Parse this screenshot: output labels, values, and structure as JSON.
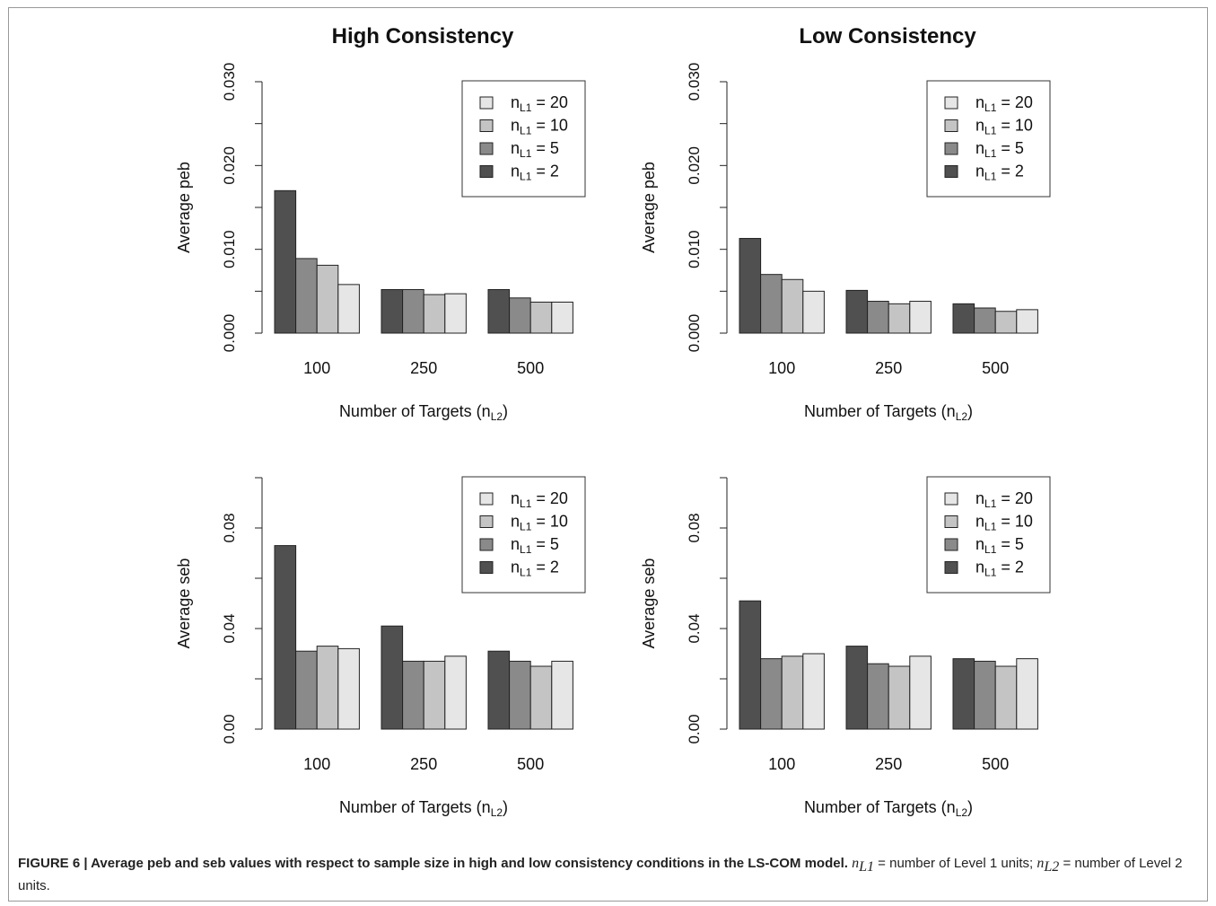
{
  "colors": {
    "nL1_2": "#505050",
    "nL1_5": "#8a8a8a",
    "nL1_10": "#c4c4c4",
    "nL1_20": "#e6e6e6",
    "axis": "#222222"
  },
  "chart_data": [
    {
      "type": "bar",
      "title": "High Consistency",
      "ylabel": "Average peb",
      "xlabel": "Number of Targets (n",
      "xlabel_sub": "L2",
      "xlabel_close": ")",
      "categories": [
        "100",
        "250",
        "500"
      ],
      "ylim": [
        0,
        0.03
      ],
      "yticks": [
        0,
        0.005,
        0.01,
        0.015,
        0.02,
        0.025,
        0.03
      ],
      "yticklabels": [
        "0.000",
        "",
        "0.010",
        "",
        "0.020",
        "",
        "0.030"
      ],
      "legend_position": "top-right",
      "series": [
        {
          "name": "2",
          "color_key": "nL1_2",
          "values": [
            0.017,
            0.0052,
            0.0052
          ]
        },
        {
          "name": "5",
          "color_key": "nL1_5",
          "values": [
            0.0089,
            0.0052,
            0.0042
          ]
        },
        {
          "name": "10",
          "color_key": "nL1_10",
          "values": [
            0.0081,
            0.0046,
            0.0037
          ]
        },
        {
          "name": "20",
          "color_key": "nL1_20",
          "values": [
            0.0058,
            0.0047,
            0.0037
          ]
        }
      ],
      "legend_prefix": "n",
      "legend_sub": "L1",
      "legend_eq": " = "
    },
    {
      "type": "bar",
      "title": "Low Consistency",
      "ylabel": "Average peb",
      "xlabel": "Number of Targets (n",
      "xlabel_sub": "L2",
      "xlabel_close": ")",
      "categories": [
        "100",
        "250",
        "500"
      ],
      "ylim": [
        0,
        0.03
      ],
      "yticks": [
        0,
        0.005,
        0.01,
        0.015,
        0.02,
        0.025,
        0.03
      ],
      "yticklabels": [
        "0.000",
        "",
        "0.010",
        "",
        "0.020",
        "",
        "0.030"
      ],
      "legend_position": "top-right",
      "series": [
        {
          "name": "2",
          "color_key": "nL1_2",
          "values": [
            0.0113,
            0.0051,
            0.0035
          ]
        },
        {
          "name": "5",
          "color_key": "nL1_5",
          "values": [
            0.007,
            0.0038,
            0.003
          ]
        },
        {
          "name": "10",
          "color_key": "nL1_10",
          "values": [
            0.0064,
            0.0035,
            0.0026
          ]
        },
        {
          "name": "20",
          "color_key": "nL1_20",
          "values": [
            0.005,
            0.0038,
            0.0028
          ]
        }
      ],
      "legend_prefix": "n",
      "legend_sub": "L1",
      "legend_eq": " = "
    },
    {
      "type": "bar",
      "title": "",
      "ylabel": "Average seb",
      "xlabel": "Number of Targets (n",
      "xlabel_sub": "L2",
      "xlabel_close": ")",
      "categories": [
        "100",
        "250",
        "500"
      ],
      "ylim": [
        0,
        0.1
      ],
      "yticks": [
        0,
        0.02,
        0.04,
        0.06,
        0.08,
        0.1
      ],
      "yticklabels": [
        "0.00",
        "",
        "0.04",
        "",
        "0.08",
        ""
      ],
      "legend_position": "top-right",
      "series": [
        {
          "name": "2",
          "color_key": "nL1_2",
          "values": [
            0.073,
            0.041,
            0.031
          ]
        },
        {
          "name": "5",
          "color_key": "nL1_5",
          "values": [
            0.031,
            0.027,
            0.027
          ]
        },
        {
          "name": "10",
          "color_key": "nL1_10",
          "values": [
            0.033,
            0.027,
            0.025
          ]
        },
        {
          "name": "20",
          "color_key": "nL1_20",
          "values": [
            0.032,
            0.029,
            0.027
          ]
        }
      ],
      "legend_prefix": "n",
      "legend_sub": "L1",
      "legend_eq": " = "
    },
    {
      "type": "bar",
      "title": "",
      "ylabel": "Average seb",
      "xlabel": "Number of Targets (n",
      "xlabel_sub": "L2",
      "xlabel_close": ")",
      "categories": [
        "100",
        "250",
        "500"
      ],
      "ylim": [
        0,
        0.1
      ],
      "yticks": [
        0,
        0.02,
        0.04,
        0.06,
        0.08,
        0.1
      ],
      "yticklabels": [
        "0.00",
        "",
        "0.04",
        "",
        "0.08",
        ""
      ],
      "legend_position": "top-right",
      "series": [
        {
          "name": "2",
          "color_key": "nL1_2",
          "values": [
            0.051,
            0.033,
            0.028
          ]
        },
        {
          "name": "5",
          "color_key": "nL1_5",
          "values": [
            0.028,
            0.026,
            0.027
          ]
        },
        {
          "name": "10",
          "color_key": "nL1_10",
          "values": [
            0.029,
            0.025,
            0.025
          ]
        },
        {
          "name": "20",
          "color_key": "nL1_20",
          "values": [
            0.03,
            0.029,
            0.028
          ]
        }
      ],
      "legend_prefix": "n",
      "legend_sub": "L1",
      "legend_eq": " = "
    }
  ],
  "caption": {
    "label": "FIGURE 6 | Average peb and seb values with respect to sample size in high and low consistency conditions in the LS-COM model.",
    "var1": "n",
    "var1_sub": "L1",
    "text1": " = number of Level 1 units; ",
    "var2": "n",
    "var2_sub": "L2",
    "text2": " = number of Level 2 units."
  }
}
